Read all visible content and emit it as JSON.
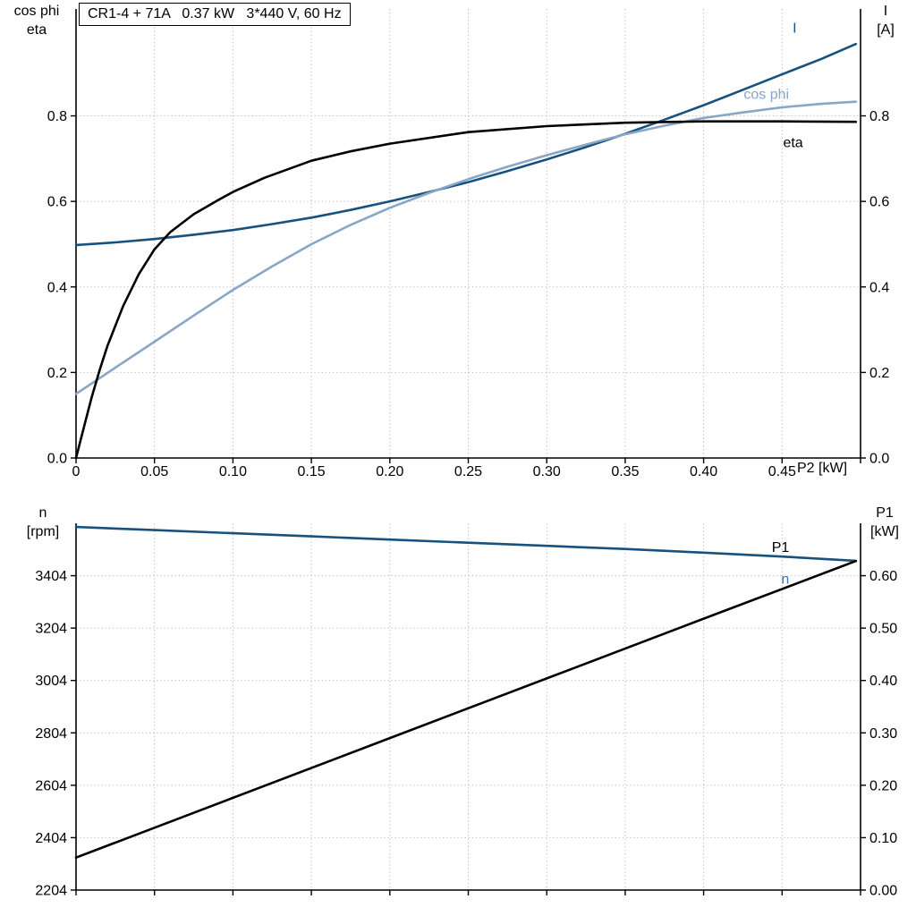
{
  "title_box": {
    "text": "CR1-4 + 71A   0.37 kW   3*440 V, 60 Hz"
  },
  "axis_corner_labels": {
    "top_left_line1": "cos phi",
    "top_left_line2": "eta",
    "top_right_line1": "I",
    "top_right_line2": "[A]",
    "bottom_left_line1": "n",
    "bottom_left_line2": "[rpm]",
    "bottom_right_line1": "P1",
    "bottom_right_line2": "[kW]",
    "x_axis_label": "P2 [kW]"
  },
  "colors": {
    "dark_blue": "#17527e",
    "light_blue": "#88a6c6",
    "medium_blue": "#3b78ad",
    "black": "#000000",
    "grid": "#bcbcbc",
    "axis": "#000000"
  },
  "chart_data": [
    {
      "type": "line",
      "title": "CR1-4 + 71A   0.37 kW   3*440 V, 60 Hz",
      "xlabel": "P2 [kW]",
      "x_range": [
        0,
        0.5
      ],
      "x_ticks": {
        "values": [
          0,
          0.05,
          0.1,
          0.15,
          0.2,
          0.25,
          0.3,
          0.35,
          0.4,
          0.45,
          0.5
        ],
        "labels": [
          "0",
          "0.05",
          "0.10",
          "0.15",
          "0.20",
          "0.25",
          "0.30",
          "0.35",
          "0.40",
          "0.45",
          ""
        ]
      },
      "left_axis": {
        "label": "cos phi / eta",
        "range": [
          0,
          1.05
        ],
        "tick_values": [
          0,
          0.2,
          0.4,
          0.6,
          0.8
        ],
        "tick_labels": [
          "0.0",
          "0.2",
          "0.4",
          "0.6",
          "0.8"
        ]
      },
      "right_axis": {
        "label": "I [A]",
        "range": [
          0,
          1.05
        ],
        "tick_values": [
          0,
          0.2,
          0.4,
          0.6,
          0.8
        ],
        "tick_labels": [
          "0.0",
          "0.2",
          "0.4",
          "0.6",
          "0.8"
        ]
      },
      "grid": true,
      "series": [
        {
          "name": "I",
          "axis": "right",
          "color": "dark_blue",
          "width": 2.6,
          "label_at": [
            0.458,
            1.005
          ],
          "x": [
            0,
            0.025,
            0.05,
            0.075,
            0.1,
            0.125,
            0.15,
            0.175,
            0.2,
            0.225,
            0.25,
            0.275,
            0.3,
            0.325,
            0.35,
            0.375,
            0.4,
            0.425,
            0.45,
            0.475,
            0.497
          ],
          "y": [
            0.498,
            0.504,
            0.512,
            0.522,
            0.533,
            0.547,
            0.562,
            0.58,
            0.6,
            0.622,
            0.645,
            0.671,
            0.698,
            0.727,
            0.758,
            0.791,
            0.825,
            0.861,
            0.897,
            0.933,
            0.968
          ]
        },
        {
          "name": "cos phi",
          "axis": "left",
          "color": "light_blue",
          "width": 2.6,
          "label_at": [
            0.44,
            0.85
          ],
          "x": [
            0,
            0.025,
            0.05,
            0.075,
            0.1,
            0.125,
            0.15,
            0.175,
            0.2,
            0.225,
            0.25,
            0.275,
            0.3,
            0.325,
            0.35,
            0.375,
            0.4,
            0.425,
            0.45,
            0.475,
            0.497
          ],
          "y": [
            0.15,
            0.211,
            0.272,
            0.333,
            0.393,
            0.448,
            0.5,
            0.545,
            0.585,
            0.62,
            0.652,
            0.681,
            0.708,
            0.733,
            0.757,
            0.777,
            0.795,
            0.808,
            0.82,
            0.828,
            0.833
          ]
        },
        {
          "name": "eta",
          "axis": "left",
          "color": "black",
          "width": 2.6,
          "label_at": [
            0.457,
            0.737
          ],
          "x": [
            0,
            0.005,
            0.01,
            0.015,
            0.02,
            0.03,
            0.04,
            0.05,
            0.06,
            0.075,
            0.09,
            0.1,
            0.12,
            0.15,
            0.175,
            0.2,
            0.25,
            0.3,
            0.35,
            0.4,
            0.45,
            0.497
          ],
          "y": [
            0,
            0.072,
            0.142,
            0.205,
            0.262,
            0.355,
            0.43,
            0.488,
            0.528,
            0.57,
            0.602,
            0.622,
            0.655,
            0.695,
            0.717,
            0.735,
            0.762,
            0.776,
            0.784,
            0.787,
            0.787,
            0.786
          ]
        }
      ]
    },
    {
      "type": "line",
      "title": "",
      "xlabel": "",
      "x_range": [
        0,
        0.5
      ],
      "x_ticks": {
        "values": [
          0,
          0.05,
          0.1,
          0.15,
          0.2,
          0.25,
          0.3,
          0.35,
          0.4,
          0.45,
          0.5
        ],
        "labels": [
          "",
          "",
          "",
          "",
          "",
          "",
          "",
          "",
          "",
          "",
          ""
        ]
      },
      "left_axis": {
        "label": "n [rpm]",
        "range": [
          2204,
          3604
        ],
        "tick_values": [
          2204,
          2404,
          2604,
          2804,
          3004,
          3204,
          3404
        ],
        "tick_labels": [
          "2204",
          "2404",
          "2604",
          "2804",
          "3004",
          "3204",
          "3404"
        ]
      },
      "right_axis": {
        "label": "P1 [kW]",
        "range": [
          0,
          0.7
        ],
        "tick_values": [
          0,
          0.1,
          0.2,
          0.3,
          0.4,
          0.5,
          0.6
        ],
        "tick_labels": [
          "0.00",
          "0.10",
          "0.20",
          "0.30",
          "0.40",
          "0.50",
          "0.60"
        ]
      },
      "grid": true,
      "series": [
        {
          "name": "n",
          "axis": "left",
          "color": "dark_blue",
          "label_color": "medium_blue",
          "width": 2.6,
          "label_at": [
            0.452,
            3390
          ],
          "x": [
            0,
            0.05,
            0.1,
            0.15,
            0.2,
            0.25,
            0.3,
            0.35,
            0.4,
            0.45,
            0.497
          ],
          "y": [
            3590,
            3578,
            3566,
            3554,
            3542,
            3530,
            3518,
            3506,
            3492,
            3477,
            3461
          ]
        },
        {
          "name": "P1",
          "axis": "right",
          "color": "black",
          "width": 2.6,
          "label_at": [
            0.449,
            0.654
          ],
          "x": [
            0,
            0.1,
            0.2,
            0.3,
            0.4,
            0.497
          ],
          "y": [
            0.062,
            0.176,
            0.29,
            0.404,
            0.518,
            0.628
          ]
        }
      ]
    }
  ]
}
